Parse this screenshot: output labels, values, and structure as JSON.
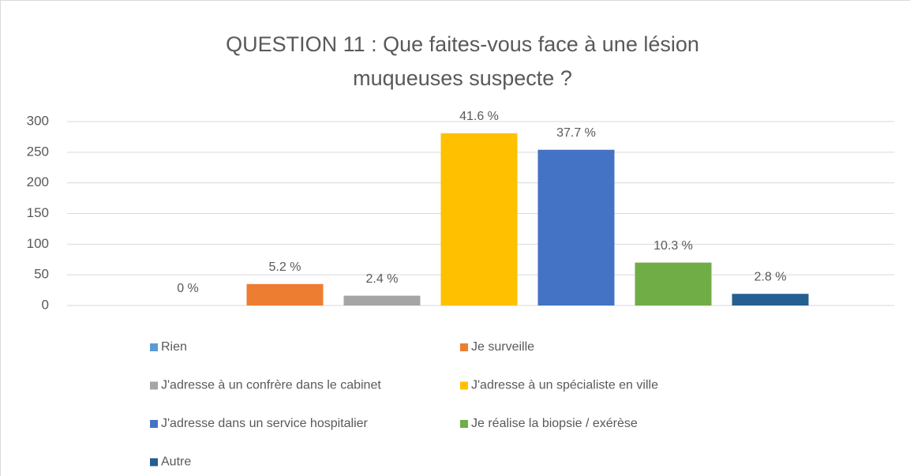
{
  "chart_data": {
    "type": "bar",
    "title": [
      "QUESTION 11 : Que faites-vous face à une lésion",
      "muqueuses suspecte ?"
    ],
    "ylim": [
      0,
      300
    ],
    "yticks": [
      0,
      50,
      100,
      150,
      200,
      250,
      300
    ],
    "grid": true,
    "legend": "bottom",
    "series": [
      {
        "name": "Rien",
        "color": "#5b9bd5",
        "values": [
          0
        ],
        "data_labels": [
          "0 %"
        ]
      },
      {
        "name": "Je surveille",
        "color": "#ed7d31",
        "values": [
          35
        ],
        "data_labels": [
          "5.2 %"
        ]
      },
      {
        "name": "J'adresse à un confrère dans le cabinet",
        "color": "#a5a5a5",
        "values": [
          16
        ],
        "data_labels": [
          "2.4 %"
        ]
      },
      {
        "name": "J'adresse à un spécialiste en ville",
        "color": "#ffc000",
        "values": [
          281
        ],
        "data_labels": [
          "41.6 %"
        ]
      },
      {
        "name": "J'adresse dans un service hospitalier",
        "color": "#4472c4",
        "values": [
          254
        ],
        "data_labels": [
          "37.7 %"
        ]
      },
      {
        "name": "Je réalise la biopsie / exérèse",
        "color": "#70ad47",
        "values": [
          70
        ],
        "data_labels": [
          "10.3 %"
        ]
      },
      {
        "name": "Autre",
        "color": "#255e91",
        "values": [
          19
        ],
        "data_labels": [
          "2.8 %"
        ]
      }
    ]
  }
}
